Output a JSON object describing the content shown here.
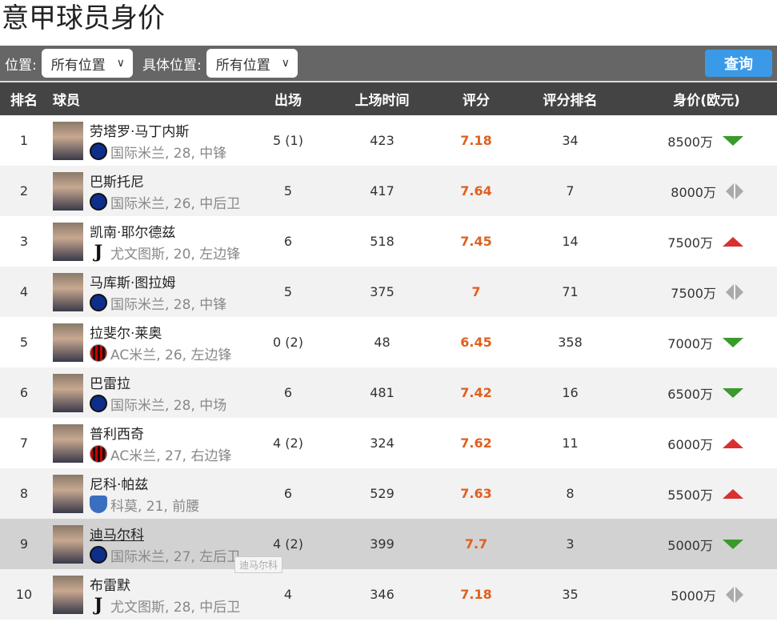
{
  "page_title": "意甲球员身价",
  "filters": {
    "position_label": "位置:",
    "position_value": "所有位置",
    "detail_label": "具体位置:",
    "detail_value": "所有位置",
    "query_button": "查询"
  },
  "columns": {
    "rank": "排名",
    "player": "球员",
    "apps": "出场",
    "minutes": "上场时间",
    "rating": "评分",
    "rating_rank": "评分排名",
    "value": "身价(欧元)"
  },
  "colors": {
    "rating": "#e0601f",
    "up": "#d93030",
    "down": "#3a9a2c",
    "same": "#aaaaaa",
    "header": "#444444",
    "query": "#3b9ae8"
  },
  "rows": [
    {
      "rank": "1",
      "name": "劳塔罗·马丁内斯",
      "club_logo": "inter",
      "info": "国际米兰, 28, 中锋",
      "apps": "5 (1)",
      "minutes": "423",
      "rating": "7.18",
      "rating_rank": "34",
      "value": "8500万",
      "trend": "down"
    },
    {
      "rank": "2",
      "name": "巴斯托尼",
      "club_logo": "inter",
      "info": "国际米兰, 26, 中后卫",
      "apps": "5",
      "minutes": "417",
      "rating": "7.64",
      "rating_rank": "7",
      "value": "8000万",
      "trend": "same"
    },
    {
      "rank": "3",
      "name": "凯南·耶尔德兹",
      "club_logo": "juve",
      "info": "尤文图斯, 20, 左边锋",
      "apps": "6",
      "minutes": "518",
      "rating": "7.45",
      "rating_rank": "14",
      "value": "7500万",
      "trend": "up"
    },
    {
      "rank": "4",
      "name": "马库斯·图拉姆",
      "club_logo": "inter",
      "info": "国际米兰, 28, 中锋",
      "apps": "5",
      "minutes": "375",
      "rating": "7",
      "rating_rank": "71",
      "value": "7500万",
      "trend": "same"
    },
    {
      "rank": "5",
      "name": "拉斐尔·莱奥",
      "club_logo": "milan",
      "info": "AC米兰, 26, 左边锋",
      "apps": "0 (2)",
      "minutes": "48",
      "rating": "6.45",
      "rating_rank": "358",
      "value": "7000万",
      "trend": "down"
    },
    {
      "rank": "6",
      "name": "巴雷拉",
      "club_logo": "inter",
      "info": "国际米兰, 28, 中场",
      "apps": "6",
      "minutes": "481",
      "rating": "7.42",
      "rating_rank": "16",
      "value": "6500万",
      "trend": "down"
    },
    {
      "rank": "7",
      "name": "普利西奇",
      "club_logo": "milan",
      "info": "AC米兰, 27, 右边锋",
      "apps": "4 (2)",
      "minutes": "324",
      "rating": "7.62",
      "rating_rank": "11",
      "value": "6000万",
      "trend": "up"
    },
    {
      "rank": "8",
      "name": "尼科·帕兹",
      "club_logo": "como",
      "info": "科莫, 21, 前腰",
      "apps": "6",
      "minutes": "529",
      "rating": "7.63",
      "rating_rank": "8",
      "value": "5500万",
      "trend": "up"
    },
    {
      "rank": "9",
      "name": "迪马尔科",
      "club_logo": "inter",
      "info": "国际米兰, 27, 左后卫",
      "apps": "4 (2)",
      "minutes": "399",
      "rating": "7.7",
      "rating_rank": "3",
      "value": "5000万",
      "trend": "down",
      "hovered": true
    },
    {
      "rank": "10",
      "name": "布雷默",
      "club_logo": "juve",
      "info": "尤文图斯, 28, 中后卫",
      "apps": "4",
      "minutes": "346",
      "rating": "7.18",
      "rating_rank": "35",
      "value": "5000万",
      "trend": "same"
    }
  ],
  "tooltip": "迪马尔科"
}
